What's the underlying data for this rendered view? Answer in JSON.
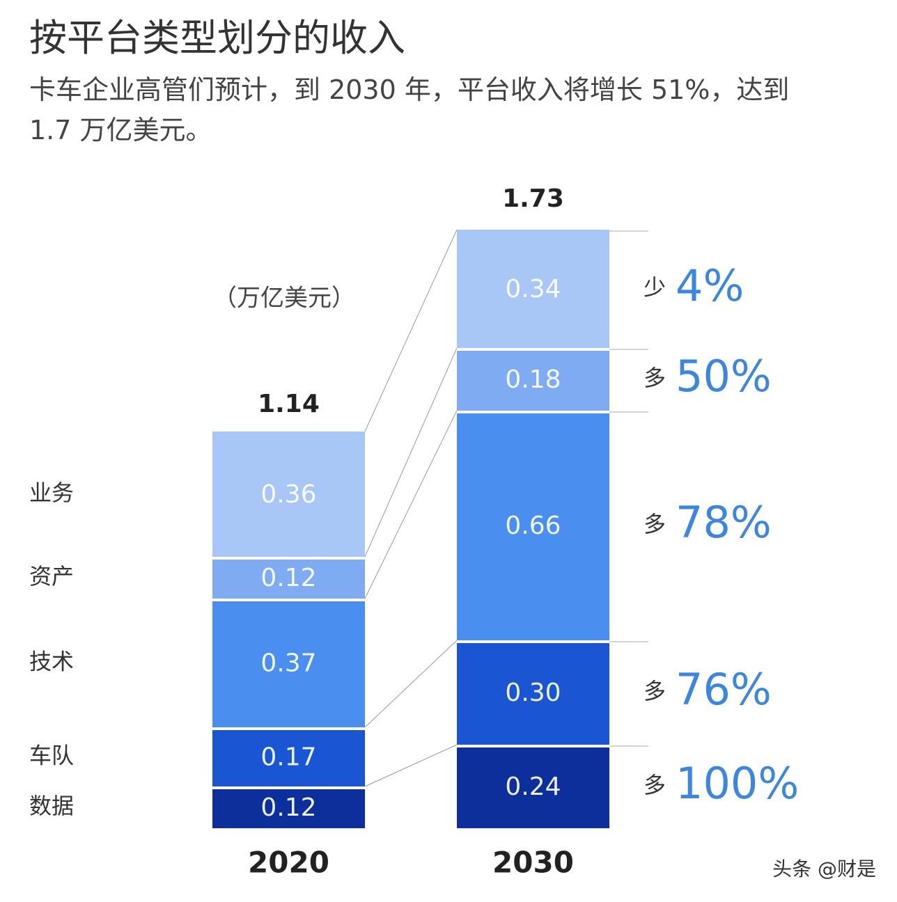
{
  "chart_data": {
    "type": "stacked-bar",
    "title": "按平台类型划分的收入",
    "subtitle": "卡车企业高管们预计，到 2030 年，平台收入将增长 51%，达到 1.7 万亿美元。",
    "unit": "（万亿美元）",
    "categories": [
      "2020",
      "2030"
    ],
    "totals": [
      1.14,
      1.73
    ],
    "series": [
      {
        "name": "数据",
        "color": "#0c2f9c",
        "values": [
          0.12,
          0.24
        ],
        "change": {
          "word": "多",
          "value": 100,
          "label": "100%"
        }
      },
      {
        "name": "车队",
        "color": "#1a56d4",
        "values": [
          0.17,
          0.3
        ],
        "value_labels": [
          "0.17",
          "0.30"
        ],
        "change": {
          "word": "多",
          "value": 76,
          "label": "76%"
        }
      },
      {
        "name": "技术",
        "color": "#4a8ef0",
        "values": [
          0.37,
          0.66
        ],
        "change": {
          "word": "多",
          "value": 78,
          "label": "78%"
        }
      },
      {
        "name": "资产",
        "color": "#7eabf2",
        "values": [
          0.12,
          0.18
        ],
        "change": {
          "word": "多",
          "value": 50,
          "label": "50%"
        }
      },
      {
        "name": "业务",
        "color": "#a8c6f6",
        "values": [
          0.36,
          0.34
        ],
        "change": {
          "word": "少",
          "value": 4,
          "label": "4%"
        }
      }
    ],
    "watermark": "头条 @财是"
  }
}
